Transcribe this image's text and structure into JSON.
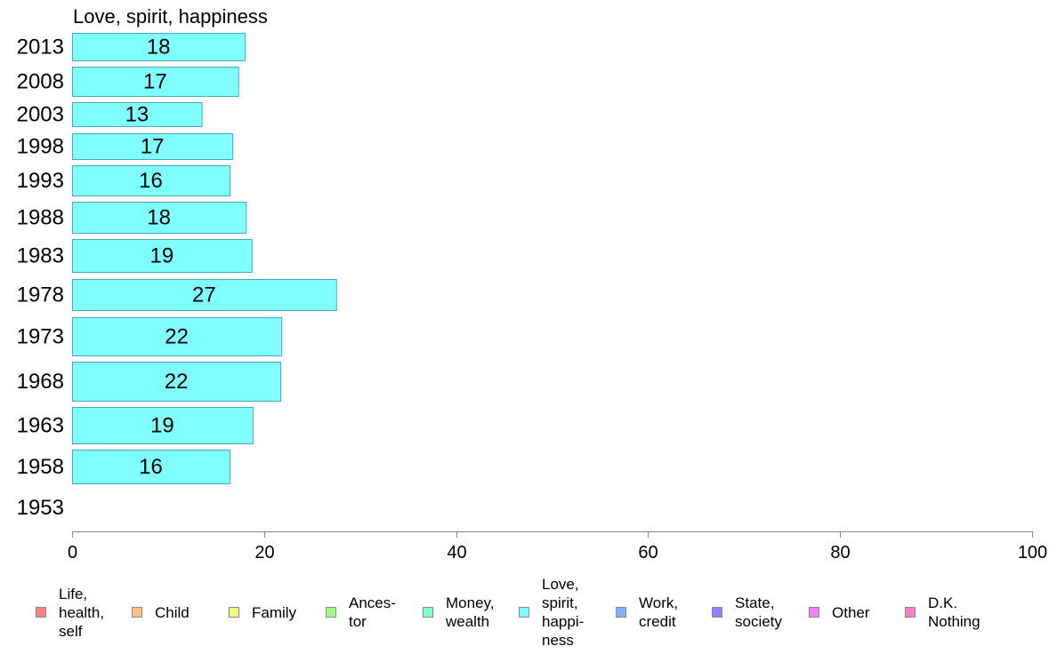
{
  "chart_data": {
    "type": "bar",
    "orientation": "horizontal",
    "title": "Love, spirit, happiness",
    "categories": [
      "2013",
      "2008",
      "2003",
      "1998",
      "1993",
      "1988",
      "1983",
      "1978",
      "1973",
      "1968",
      "1963",
      "1958",
      "1953"
    ],
    "values": [
      18,
      17,
      13,
      17,
      16,
      18,
      19,
      27,
      22,
      22,
      19,
      16,
      null
    ],
    "bar_values_estimated": [
      18.0,
      17.3,
      13.5,
      16.7,
      16.4,
      18.1,
      18.7,
      27.5,
      21.8,
      21.7,
      18.8,
      16.4,
      null
    ],
    "xlim": [
      0,
      100
    ],
    "xticks": [
      0,
      20,
      40,
      60,
      80,
      100
    ],
    "grid": false,
    "bar_color": "#80ffff",
    "bar_border_color": "#4aa8b8",
    "legend_position": "bottom",
    "legend": [
      {
        "label": "Life,\nhealth,\nself",
        "color": "#ff8080"
      },
      {
        "label": "Child",
        "color": "#ffc080"
      },
      {
        "label": "Family",
        "color": "#f0ff80"
      },
      {
        "label": "Ances-\ntor",
        "color": "#a0ff80"
      },
      {
        "label": "Money,\nwealth",
        "color": "#80ffc0"
      },
      {
        "label": "Love,\nspirit,\nhappi-\nness",
        "color": "#80ffff"
      },
      {
        "label": "Work,\ncredit",
        "color": "#80b0ff"
      },
      {
        "label": "State,\nsociety",
        "color": "#9080ff"
      },
      {
        "label": "Other",
        "color": "#f080ff"
      },
      {
        "label": "D.K.\nNothing",
        "color": "#ff80c0"
      }
    ]
  }
}
